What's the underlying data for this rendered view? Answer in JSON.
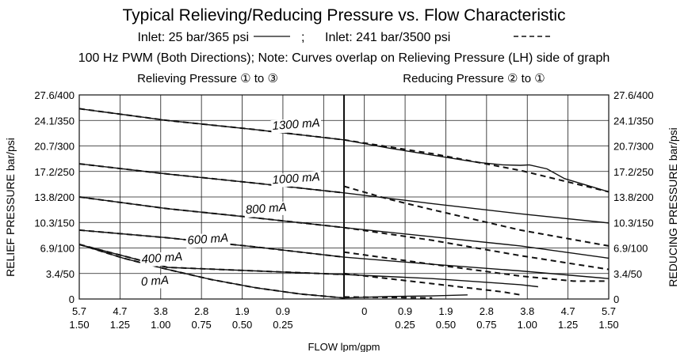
{
  "title": "Typical Relieving/Reducing Pressure vs. Flow Characteristic",
  "subtitle_line1": {
    "inlet1": "Inlet: 25 bar/365 psi",
    "sep": ";",
    "inlet2": "Inlet: 241 bar/3500 psi"
  },
  "subtitle_line2": "100 Hz PWM (Both Directions); Note: Curves overlap on Relieving Pressure (LH) side of graph",
  "left_section_label": "Relieving Pressure ① to ③",
  "right_section_label": "Reducing Pressure ② to ①",
  "chart_data": {
    "type": "line",
    "title": "Typical Relieving/Reducing Pressure vs. Flow Characteristic",
    "xlabel": "FLOW lpm/gpm",
    "ylabel_left": "RELIEF PRESSURE bar/psi",
    "ylabel_right": "REDUCING PRESSURE bar/psi",
    "x_ticks": {
      "lpm": [
        "5.7",
        "4.7",
        "3.8",
        "2.8",
        "1.9",
        "0.9",
        "",
        "0",
        "0.9",
        "1.9",
        "2.8",
        "3.8",
        "4.7",
        "5.7"
      ],
      "gpm": [
        "1.50",
        "1.25",
        "1.00",
        "0.75",
        "0.50",
        "0.25",
        "",
        "",
        "0.25",
        "0.50",
        "0.75",
        "1.00",
        "1.25",
        "1.50"
      ]
    },
    "y_ticks": [
      "0",
      "3.4/50",
      "6.9/100",
      "10.3/150",
      "13.8/200",
      "17.2/250",
      "20.7/300",
      "24.1/350",
      "27.6/400"
    ],
    "xlim_gpm": [
      -1.5,
      1.5
    ],
    "ylim_psi": [
      0,
      400
    ],
    "grid": true,
    "x_note": "x in gpm; negative = relieving side (left), positive = reducing side (right)",
    "series": [
      {
        "name": "1300 mA",
        "style": "solid",
        "x": [
          -1.5,
          -1.0,
          -0.5,
          0.0,
          0.25,
          0.5,
          0.75,
          0.9,
          1.0,
          1.05,
          1.15,
          1.25,
          1.5
        ],
        "y": [
          373,
          350,
          332,
          312,
          296,
          282,
          268,
          263,
          262,
          263,
          255,
          236,
          210
        ]
      },
      {
        "name": "1300 mA",
        "style": "dashed",
        "x": [
          -1.5,
          -1.0,
          -0.5,
          0.0,
          0.5,
          1.0,
          1.5
        ],
        "y": [
          373,
          350,
          332,
          312,
          285,
          252,
          210
        ]
      },
      {
        "name": "1000 mA",
        "style": "solid",
        "x": [
          -1.5,
          -1.0,
          -0.5,
          0.0,
          0.5,
          1.0,
          1.5
        ],
        "y": [
          265,
          245,
          227,
          208,
          187,
          167,
          149
        ]
      },
      {
        "name": "1000 mA",
        "style": "dashed",
        "x": [
          -1.5,
          -1.0,
          -0.5,
          0.0
        ],
        "y": [
          265,
          245,
          227,
          208
        ]
      },
      {
        "name": "1000 mA",
        "style": "dashed",
        "x": [
          0.0,
          0.25,
          0.5,
          1.0,
          1.5
        ],
        "y": [
          221,
          196,
          175,
          135,
          104
        ]
      },
      {
        "name": "800 mA",
        "style": "solid",
        "x": [
          -1.5,
          -1.0,
          -0.5,
          0.0,
          0.5,
          1.0,
          1.5
        ],
        "y": [
          200,
          177,
          159,
          140,
          122,
          104,
          80
        ]
      },
      {
        "name": "800 mA",
        "style": "dashed",
        "x": [
          -1.5,
          -1.0,
          -0.5,
          0.0
        ],
        "y": [
          200,
          177,
          159,
          140
        ]
      },
      {
        "name": "800 mA",
        "style": "dashed",
        "x": [
          0.0,
          0.5,
          1.0,
          1.5
        ],
        "y": [
          140,
          115,
          85,
          58
        ]
      },
      {
        "name": "600 mA",
        "style": "solid",
        "x": [
          -1.5,
          -1.0,
          -0.5,
          0.0,
          0.5,
          1.0,
          1.5
        ],
        "y": [
          135,
          120,
          102,
          82,
          68,
          55,
          40
        ]
      },
      {
        "name": "600 mA",
        "style": "dashed",
        "x": [
          -1.5,
          -1.0,
          -0.5,
          0.0
        ],
        "y": [
          135,
          120,
          102,
          82
        ]
      },
      {
        "name": "600 mA",
        "style": "dashed",
        "x": [
          0.0,
          0.5,
          1.0,
          1.3,
          1.5
        ],
        "y": [
          92,
          68,
          45,
          35,
          35
        ]
      },
      {
        "name": "400 mA",
        "style": "solid",
        "x": [
          -1.5,
          -1.0,
          -0.5,
          0.0,
          0.5,
          1.0,
          1.1
        ],
        "y": [
          107,
          62,
          55,
          48,
          40,
          28,
          24
        ]
      },
      {
        "name": "400 mA",
        "style": "dashed",
        "x": [
          -1.5,
          -1.0,
          -0.5,
          0.0
        ],
        "y": [
          107,
          62,
          55,
          48
        ]
      },
      {
        "name": "400 mA",
        "style": "dashed",
        "x": [
          0.0,
          0.5,
          0.9,
          1.0
        ],
        "y": [
          50,
          30,
          14,
          8
        ]
      },
      {
        "name": "0 mA",
        "style": "solid",
        "x": [
          -1.5,
          -1.25,
          -1.0,
          -0.75,
          -0.5,
          -0.25,
          0.0,
          0.25,
          0.5,
          0.7
        ],
        "y": [
          107,
          80,
          58,
          38,
          22,
          10,
          2,
          5,
          6,
          8
        ]
      },
      {
        "name": "0 mA",
        "style": "dashed",
        "x": [
          -1.5,
          -1.25,
          -1.0,
          -0.75,
          -0.5,
          -0.25,
          0.0
        ],
        "y": [
          107,
          80,
          58,
          38,
          22,
          10,
          2
        ]
      },
      {
        "name": "0 mA",
        "style": "dashed",
        "x": [
          0.0,
          0.3,
          0.5
        ],
        "y": [
          4,
          3,
          2
        ]
      }
    ],
    "annotations": [
      {
        "text": "1300 mA",
        "x": -0.27,
        "y": 335
      },
      {
        "text": "1000 mA",
        "x": -0.27,
        "y": 229
      },
      {
        "text": "800 mA",
        "x": -0.44,
        "y": 170
      },
      {
        "text": "600 mA",
        "x": -0.77,
        "y": 110
      },
      {
        "text": "400 mA",
        "x": -1.03,
        "y": 73
      },
      {
        "text": "0 mA",
        "x": -1.07,
        "y": 28
      }
    ]
  }
}
